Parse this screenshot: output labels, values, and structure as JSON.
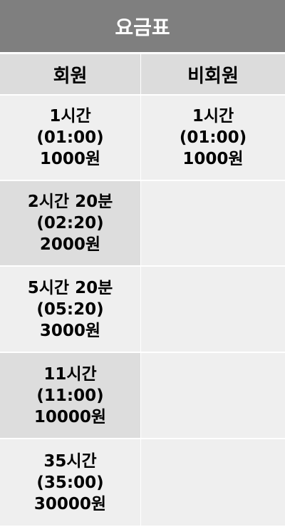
{
  "title": "요금표",
  "headers": {
    "member": "회원",
    "nonmember": "비회원"
  },
  "rows": [
    {
      "member": {
        "duration": "1시간",
        "time": "(01:00)",
        "price": "1000원"
      },
      "nonmember": {
        "duration": "1시간",
        "time": "(01:00)",
        "price": "1000원"
      }
    },
    {
      "member": {
        "duration": "2시간 20분",
        "time": "(02:20)",
        "price": "2000원"
      },
      "nonmember": {
        "duration": "",
        "time": "",
        "price": ""
      }
    },
    {
      "member": {
        "duration": "5시간 20분",
        "time": "(05:20)",
        "price": "3000원"
      },
      "nonmember": {
        "duration": "",
        "time": "",
        "price": ""
      }
    },
    {
      "member": {
        "duration": "11시간",
        "time": "(11:00)",
        "price": "10000원"
      },
      "nonmember": {
        "duration": "",
        "time": "",
        "price": ""
      }
    },
    {
      "member": {
        "duration": "35시간",
        "time": "(35:00)",
        "price": "30000원"
      },
      "nonmember": {
        "duration": "",
        "time": "",
        "price": ""
      }
    }
  ],
  "colors": {
    "title_bg": "#7f7f7f",
    "header_bg": "#dcdcdc",
    "row_light": "#efefef",
    "row_dark": "#dddddd"
  }
}
